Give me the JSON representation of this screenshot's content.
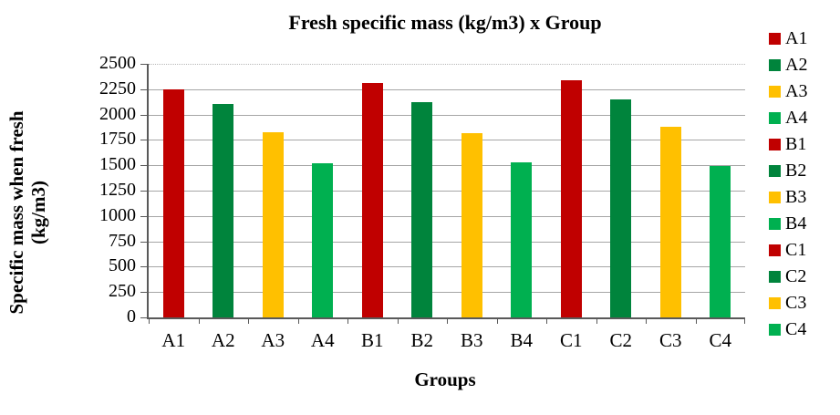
{
  "chart_data": {
    "type": "bar",
    "title": "Fresh specific mass (kg/m3) x Group",
    "xlabel": "Groups",
    "ylabel": "Specific mass when fresh (kg/m3)",
    "ylabel_line1": "Specific mass when fresh",
    "ylabel_line2": "(kg/m3)",
    "categories": [
      "A1",
      "A2",
      "A3",
      "A4",
      "B1",
      "B2",
      "B3",
      "B4",
      "C1",
      "C2",
      "C3",
      "C4"
    ],
    "values": [
      2250,
      2105,
      1825,
      1520,
      2310,
      2120,
      1815,
      1530,
      2335,
      2145,
      1880,
      1490
    ],
    "colors": [
      "#C00000",
      "#00843C",
      "#FFC000",
      "#00B050",
      "#C00000",
      "#00843C",
      "#FFC000",
      "#00B050",
      "#C00000",
      "#00843C",
      "#FFC000",
      "#00B050"
    ],
    "ylim": [
      0,
      2500
    ],
    "ytick_step": 250,
    "ytick_labels": [
      "0",
      "250",
      "500",
      "750",
      "1000",
      "1250",
      "1500",
      "1750",
      "2000",
      "2250",
      "2500"
    ],
    "grid": true,
    "legend_position": "right",
    "legend": [
      {
        "label": "A1",
        "color": "#C00000"
      },
      {
        "label": "A2",
        "color": "#00843C"
      },
      {
        "label": "A3",
        "color": "#FFC000"
      },
      {
        "label": "A4",
        "color": "#00B050"
      },
      {
        "label": "B1",
        "color": "#C00000"
      },
      {
        "label": "B2",
        "color": "#00843C"
      },
      {
        "label": "B3",
        "color": "#FFC000"
      },
      {
        "label": "B4",
        "color": "#00B050"
      },
      {
        "label": "C1",
        "color": "#C00000"
      },
      {
        "label": "C2",
        "color": "#00843C"
      },
      {
        "label": "C3",
        "color": "#FFC000"
      },
      {
        "label": "C4",
        "color": "#00B050"
      }
    ],
    "palette": {
      "red": "#C00000",
      "dark_green": "#00843C",
      "gold": "#FFC000",
      "green": "#00B050",
      "gridline": "#a6a6a6",
      "axis": "#595959"
    }
  }
}
